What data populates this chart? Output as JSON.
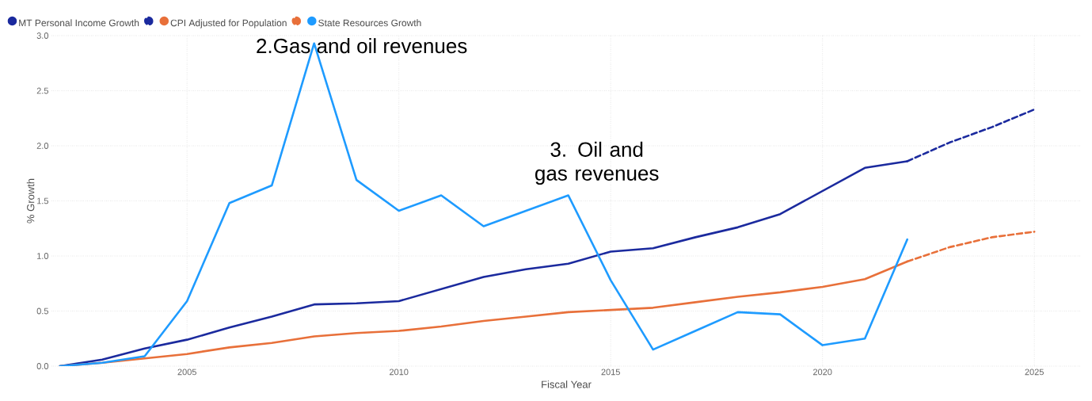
{
  "chart_data": {
    "type": "line",
    "xlabel": "Fiscal Year",
    "ylabel": "% Growth",
    "x": [
      2002,
      2003,
      2004,
      2005,
      2006,
      2007,
      2008,
      2009,
      2010,
      2011,
      2012,
      2013,
      2014,
      2015,
      2016,
      2017,
      2018,
      2019,
      2020,
      2021,
      2022
    ],
    "series": [
      {
        "name": "MT Personal Income Growth",
        "color": "#1b2a9e",
        "values": [
          0,
          0.06,
          0.16,
          0.24,
          0.35,
          0.45,
          0.56,
          0.57,
          0.59,
          0.7,
          0.81,
          0.88,
          0.93,
          1.04,
          1.07,
          1.17,
          1.26,
          1.38,
          1.59,
          1.8,
          1.86
        ]
      },
      {
        "color": "#1b2a9e",
        "line_style": "dashed",
        "x": [
          2022,
          2023,
          2024,
          2025
        ],
        "values": [
          1.86,
          2.03,
          2.17,
          2.33
        ]
      },
      {
        "name": "CPI Adjusted for Population",
        "color": "#e8703a",
        "values": [
          0,
          0.03,
          0.07,
          0.11,
          0.17,
          0.21,
          0.27,
          0.3,
          0.32,
          0.36,
          0.41,
          0.45,
          0.49,
          0.51,
          0.53,
          0.58,
          0.63,
          0.67,
          0.72,
          0.79,
          0.95
        ]
      },
      {
        "color": "#e8703a",
        "line_style": "dashed",
        "x": [
          2022,
          2023,
          2024,
          2025
        ],
        "values": [
          0.95,
          1.08,
          1.17,
          1.22
        ]
      },
      {
        "name": "State Resources Growth",
        "color": "#1e9bff",
        "values": [
          0,
          0.03,
          0.09,
          0.59,
          1.48,
          1.64,
          2.93,
          1.69,
          1.41,
          1.55,
          1.27,
          1.41,
          1.55,
          0.78,
          0.15,
          0.32,
          0.49,
          0.47,
          0.19,
          0.25,
          1.15
        ]
      }
    ],
    "annotations": [
      {
        "text": "2.Gas and oil revenues",
        "x": 2008,
        "y": 2.93
      },
      {
        "text": "3. Oil and gas revenues",
        "x": 2014,
        "y": 1.55
      }
    ],
    "xlim": [
      2001.8,
      2026.1
    ],
    "ylim": [
      0,
      3.0
    ],
    "xticks": [
      2005,
      2010,
      2015,
      2020,
      2025
    ],
    "yticks": [
      {
        "value": 0,
        "label": "0.0"
      },
      {
        "value": 0.5,
        "label": "0.5"
      },
      {
        "value": 1,
        "label": "1.0"
      },
      {
        "value": 1.5,
        "label": "1.5"
      },
      {
        "value": 2,
        "label": "2.0"
      },
      {
        "value": 2.5,
        "label": "2.5"
      },
      {
        "value": 3,
        "label": "3.0"
      }
    ],
    "grid": true,
    "legend": "top left",
    "marker": "none",
    "line_style": "solid"
  }
}
